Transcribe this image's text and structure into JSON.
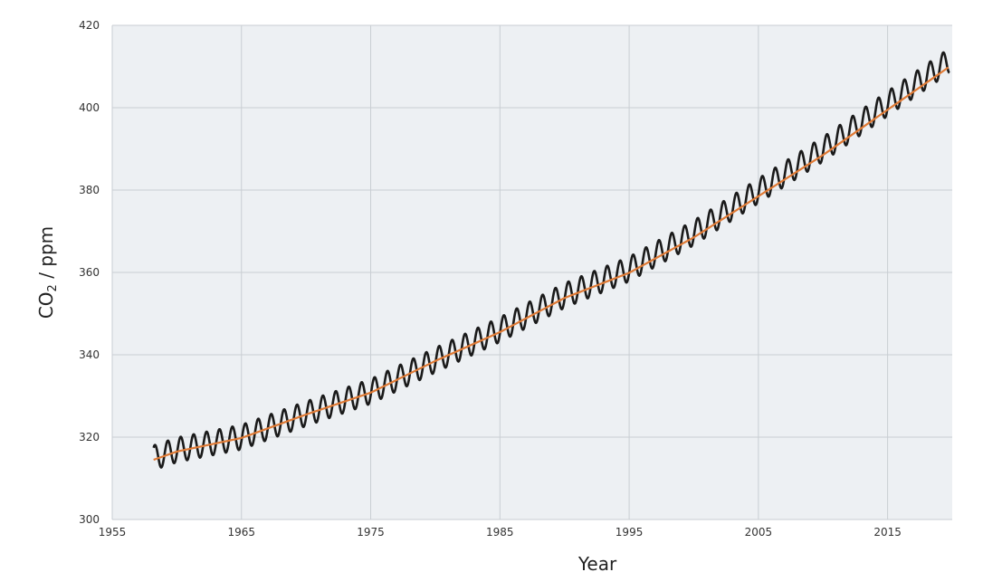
{
  "chart_data": {
    "type": "line",
    "title": "",
    "xlabel": "Year",
    "ylabel": {
      "main": "CO",
      "subscript": "2",
      "suffix": " / ppm"
    },
    "xlim": [
      1955,
      2020
    ],
    "ylim": [
      300,
      420
    ],
    "x_ticks": [
      1955,
      1965,
      1975,
      1985,
      1995,
      2005,
      2015
    ],
    "x_tick_labels": [
      "1955",
      "1965",
      "1975",
      "1985",
      "1995",
      "2005",
      "2015"
    ],
    "y_ticks": [
      300,
      320,
      340,
      360,
      380,
      400,
      420
    ],
    "y_tick_labels": [
      "300",
      "320",
      "340",
      "360",
      "380",
      "400",
      "420"
    ],
    "grid": true,
    "background": "#edf0f3",
    "series": [
      {
        "role": "monthly",
        "color": "#1a1a1a",
        "seasonal_amplitude_ppm": 3,
        "x": [
          1958.2,
          1960,
          1965,
          1970,
          1975,
          1980,
          1985,
          1990,
          1995,
          2000,
          2005,
          2010,
          2015,
          2019.8
        ],
        "y": [
          315,
          316.9,
          320.0,
          325.7,
          331.1,
          338.7,
          346.1,
          354.4,
          360.8,
          369.6,
          379.8,
          389.9,
          401.0,
          411.5
        ]
      },
      {
        "role": "trend",
        "color": "#e07a35",
        "x": [
          1958.2,
          1960,
          1965,
          1970,
          1975,
          1980,
          1985,
          1990,
          1995,
          2000,
          2005,
          2010,
          2015,
          2019.8
        ],
        "y": [
          314.5,
          316.5,
          319.8,
          325.5,
          330.8,
          338.5,
          345.5,
          353.8,
          359.9,
          368.5,
          378.5,
          388.5,
          399.5,
          410.0
        ]
      }
    ]
  }
}
